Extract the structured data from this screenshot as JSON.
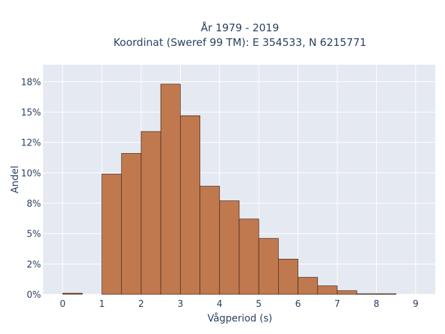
{
  "chart_data": {
    "type": "bar",
    "title_line1": "År 1979 - 2019",
    "title_line2": "Koordinat (Sweref 99 TM): E 354533, N 6215771",
    "xlabel": "Vågperiod (s)",
    "ylabel": "Andel",
    "xlim": [
      -0.5,
      9.5
    ],
    "ylim": [
      0,
      18.9
    ],
    "x_ticks": [
      0,
      1,
      2,
      3,
      4,
      5,
      6,
      7,
      8,
      9
    ],
    "y_ticks": [
      0,
      2.5,
      5,
      7.5,
      10,
      12.5,
      15,
      17.5
    ],
    "y_tick_labels": [
      "0%",
      "2%",
      "5%",
      "8%",
      "10%",
      "12%",
      "15%",
      "18%"
    ],
    "bins": [
      {
        "start": 0.0,
        "end": 0.5,
        "value": 0.1
      },
      {
        "start": 1.0,
        "end": 1.5,
        "value": 9.9
      },
      {
        "start": 1.5,
        "end": 2.0,
        "value": 11.6
      },
      {
        "start": 2.0,
        "end": 2.5,
        "value": 13.4
      },
      {
        "start": 2.5,
        "end": 3.0,
        "value": 17.3
      },
      {
        "start": 3.0,
        "end": 3.5,
        "value": 14.7
      },
      {
        "start": 3.5,
        "end": 4.0,
        "value": 8.9
      },
      {
        "start": 4.0,
        "end": 4.5,
        "value": 7.7
      },
      {
        "start": 4.5,
        "end": 5.0,
        "value": 6.2
      },
      {
        "start": 5.0,
        "end": 5.5,
        "value": 4.6
      },
      {
        "start": 5.5,
        "end": 6.0,
        "value": 2.9
      },
      {
        "start": 6.0,
        "end": 6.5,
        "value": 1.4
      },
      {
        "start": 6.5,
        "end": 7.0,
        "value": 0.7
      },
      {
        "start": 7.0,
        "end": 7.5,
        "value": 0.3
      },
      {
        "start": 7.5,
        "end": 8.0,
        "value": 0.05
      },
      {
        "start": 8.0,
        "end": 8.5,
        "value": 0.05
      }
    ],
    "grid": true,
    "colors": {
      "bar": "#c0794f",
      "bar_edge": "#3a2418",
      "plot_bg": "#e5e9f1",
      "text": "#2a3f5f"
    }
  }
}
